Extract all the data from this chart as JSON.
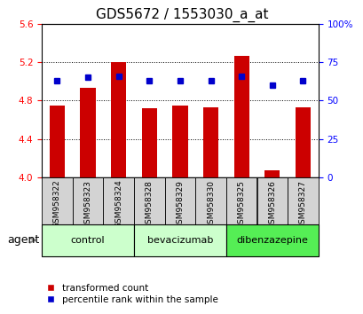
{
  "title": "GDS5672 / 1553030_a_at",
  "samples": [
    "GSM958322",
    "GSM958323",
    "GSM958324",
    "GSM958328",
    "GSM958329",
    "GSM958330",
    "GSM958325",
    "GSM958326",
    "GSM958327"
  ],
  "red_values": [
    4.75,
    4.93,
    5.2,
    4.72,
    4.75,
    4.73,
    5.26,
    4.07,
    4.73
  ],
  "blue_values": [
    63,
    65,
    66,
    63,
    63,
    63,
    66,
    60,
    63
  ],
  "ylim_left": [
    4.0,
    5.6
  ],
  "ylim_right": [
    0,
    100
  ],
  "yticks_left": [
    4.0,
    4.4,
    4.8,
    5.2,
    5.6
  ],
  "yticks_right": [
    0,
    25,
    50,
    75,
    100
  ],
  "group_box_color": "#d3d3d3",
  "bar_width": 0.5,
  "red_color": "#cc0000",
  "blue_color": "#0000cc",
  "legend_red_label": "transformed count",
  "legend_blue_label": "percentile rank within the sample",
  "agent_label": "agent",
  "title_fontsize": 11,
  "tick_fontsize": 7.5,
  "sample_fontsize": 6.5,
  "group_fontsize": 8,
  "groups": [
    {
      "label": "control",
      "start": 0,
      "end": 2,
      "color": "#ccffcc"
    },
    {
      "label": "bevacizumab",
      "start": 3,
      "end": 5,
      "color": "#ccffcc"
    },
    {
      "label": "dibenzazepine",
      "start": 6,
      "end": 8,
      "color": "#55ee55"
    }
  ]
}
